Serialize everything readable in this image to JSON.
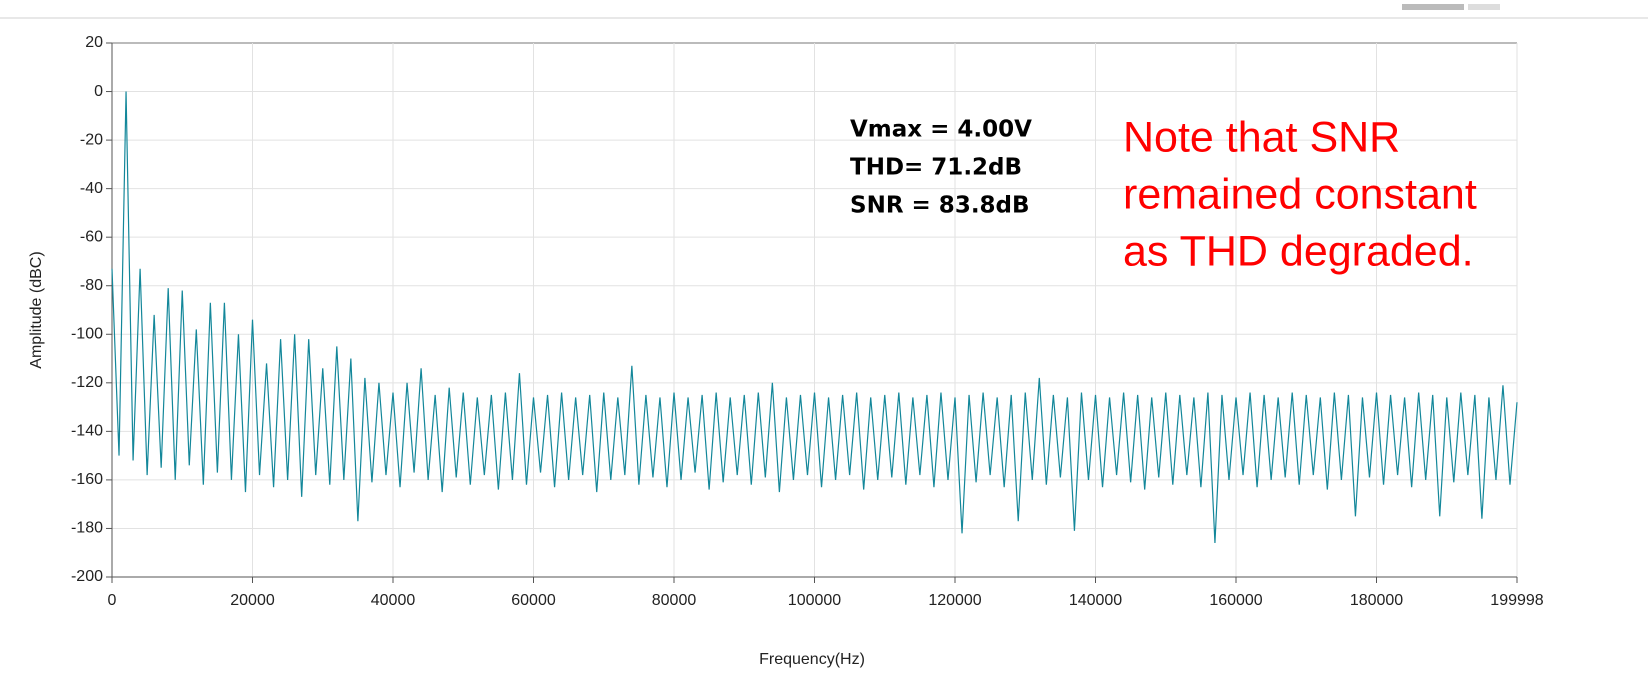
{
  "chart_data": {
    "type": "line",
    "xlabel": "Frequency(Hz)",
    "ylabel": "Amplitude (dBC)",
    "annotations": [
      "Vmax = 4.00V",
      "THD= 71.2dB",
      "SNR = 83.8dB"
    ],
    "note": [
      "Note that SNR",
      "remained constant",
      "as THD degraded."
    ],
    "xlim": [
      0,
      199998
    ],
    "ylim": [
      -200,
      20
    ],
    "xticks": [
      0,
      20000,
      40000,
      60000,
      80000,
      100000,
      120000,
      140000,
      160000,
      180000,
      199998
    ],
    "yticks": [
      -200,
      -180,
      -160,
      -140,
      -120,
      -100,
      -80,
      -60,
      -40,
      -20,
      0,
      20
    ],
    "grid": true,
    "series": [
      {
        "color": "#13879a",
        "x": [
          0,
          1000,
          2000,
          3000,
          4000,
          5000,
          6000,
          7000,
          8000,
          9000,
          10000,
          11000,
          12000,
          13000,
          14000,
          15000,
          16000,
          17000,
          18000,
          19000,
          20000,
          21000,
          22000,
          23000,
          24000,
          25000,
          26000,
          27000,
          28000,
          29000,
          30000,
          31000,
          32000,
          33000,
          34000,
          35000,
          36000,
          37000,
          38000,
          39000,
          40000,
          41000,
          42000,
          43000,
          44000,
          45000,
          46000,
          47000,
          48000,
          49000,
          50000,
          51000,
          52000,
          53000,
          54000,
          55000,
          56000,
          57000,
          58000,
          59000,
          60000,
          61000,
          62000,
          63000,
          64000,
          65000,
          66000,
          67000,
          68000,
          69000,
          70000,
          71000,
          72000,
          73000,
          74000,
          75000,
          76000,
          77000,
          78000,
          79000,
          80000,
          81000,
          82000,
          83000,
          84000,
          85000,
          86000,
          87000,
          88000,
          89000,
          90000,
          91000,
          92000,
          93000,
          94000,
          95000,
          96000,
          97000,
          98000,
          99000,
          100000,
          101000,
          102000,
          103000,
          104000,
          105000,
          106000,
          107000,
          108000,
          109000,
          110000,
          111000,
          112000,
          113000,
          114000,
          115000,
          116000,
          117000,
          118000,
          119000,
          120000,
          121000,
          122000,
          123000,
          124000,
          125000,
          126000,
          127000,
          128000,
          129000,
          130000,
          131000,
          132000,
          133000,
          134000,
          135000,
          136000,
          137000,
          138000,
          139000,
          140000,
          141000,
          142000,
          143000,
          144000,
          145000,
          146000,
          147000,
          148000,
          149000,
          150000,
          151000,
          152000,
          153000,
          154000,
          155000,
          156000,
          157000,
          158000,
          159000,
          160000,
          161000,
          162000,
          163000,
          164000,
          165000,
          166000,
          167000,
          168000,
          169000,
          170000,
          171000,
          172000,
          173000,
          174000,
          175000,
          176000,
          177000,
          178000,
          179000,
          180000,
          181000,
          182000,
          183000,
          184000,
          185000,
          186000,
          187000,
          188000,
          189000,
          190000,
          191000,
          192000,
          193000,
          194000,
          195000,
          196000,
          197000,
          198000,
          199000,
          199998
        ],
        "values": [
          -73,
          -150,
          0,
          -152,
          -73,
          -158,
          -92,
          -155,
          -81,
          -160,
          -82,
          -154,
          -98,
          -162,
          -87,
          -157,
          -87,
          -160,
          -100,
          -165,
          -94,
          -158,
          -112,
          -163,
          -102,
          -160,
          -100,
          -167,
          -102,
          -158,
          -114,
          -162,
          -105,
          -160,
          -110,
          -177,
          -118,
          -161,
          -120,
          -158,
          -124,
          -163,
          -120,
          -157,
          -114,
          -160,
          -125,
          -165,
          -122,
          -159,
          -124,
          -162,
          -126,
          -158,
          -125,
          -164,
          -124,
          -160,
          -116,
          -162,
          -126,
          -157,
          -125,
          -163,
          -124,
          -160,
          -126,
          -158,
          -125,
          -165,
          -124,
          -160,
          -126,
          -158,
          -113,
          -162,
          -125,
          -159,
          -126,
          -163,
          -124,
          -160,
          -126,
          -157,
          -125,
          -164,
          -124,
          -161,
          -126,
          -158,
          -125,
          -162,
          -124,
          -159,
          -120,
          -165,
          -126,
          -160,
          -125,
          -158,
          -124,
          -163,
          -126,
          -160,
          -125,
          -158,
          -124,
          -164,
          -126,
          -160,
          -125,
          -159,
          -124,
          -162,
          -126,
          -158,
          -125,
          -163,
          -124,
          -160,
          -126,
          -182,
          -125,
          -161,
          -124,
          -158,
          -126,
          -163,
          -125,
          -177,
          -124,
          -160,
          -118,
          -162,
          -125,
          -159,
          -126,
          -181,
          -124,
          -160,
          -125,
          -163,
          -126,
          -158,
          -124,
          -161,
          -125,
          -164,
          -126,
          -159,
          -124,
          -162,
          -125,
          -158,
          -126,
          -163,
          -124,
          -186,
          -125,
          -160,
          -126,
          -158,
          -124,
          -163,
          -125,
          -160,
          -126,
          -159,
          -124,
          -162,
          -125,
          -158,
          -126,
          -164,
          -124,
          -160,
          -125,
          -175,
          -126,
          -159,
          -124,
          -162,
          -125,
          -158,
          -126,
          -163,
          -124,
          -160,
          -125,
          -175,
          -126,
          -161,
          -124,
          -158,
          -125,
          -176,
          -126,
          -160,
          -121,
          -162,
          -128
        ]
      }
    ]
  }
}
